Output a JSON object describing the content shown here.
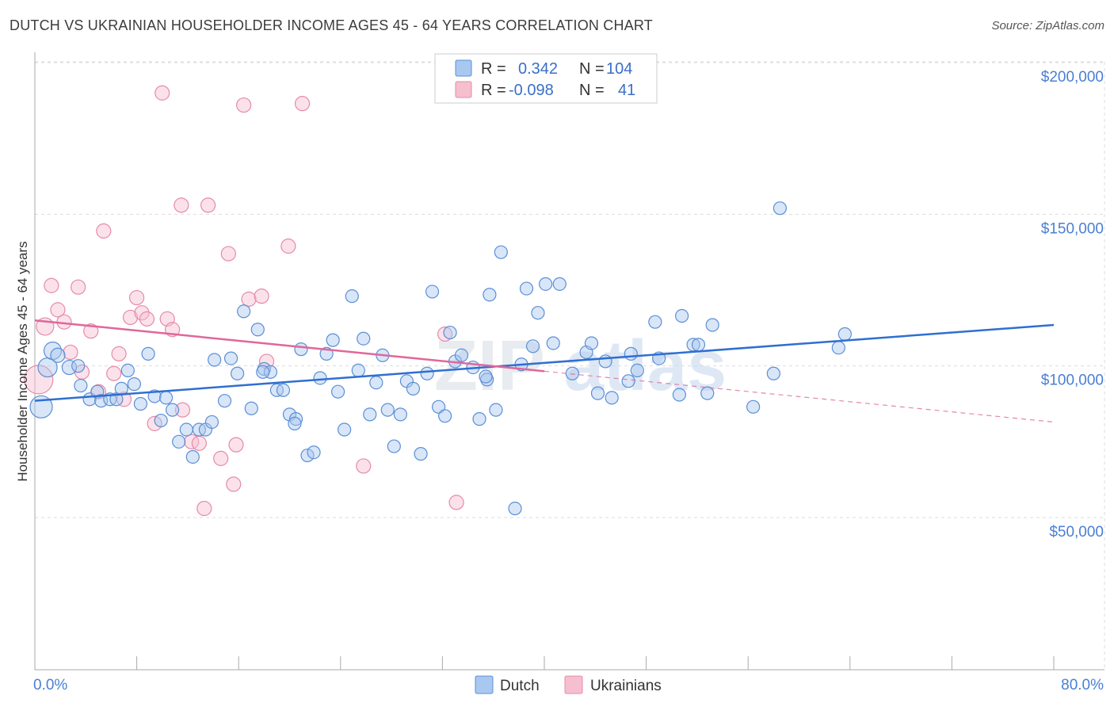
{
  "title": "DUTCH VS UKRAINIAN HOUSEHOLDER INCOME AGES 45 - 64 YEARS CORRELATION CHART",
  "source": "Source: ZipAtlas.com",
  "watermark": {
    "zip": "ZIP",
    "atlas": "atlas"
  },
  "colors": {
    "dutch_fill": "#a9c8f0",
    "dutch_stroke": "#5b8fd6",
    "dutch_line": "#2f6fd0",
    "ukr_fill": "#f6bfd0",
    "ukr_stroke": "#e68aa8",
    "ukr_line": "#e0679a",
    "tick_label": "#4a7fd4",
    "grid": "#dddddd"
  },
  "legend": {
    "rows": [
      {
        "r_label": "R =",
        "r_value": "0.342",
        "n_label": "N =",
        "n_value": "104"
      },
      {
        "r_label": "R =",
        "r_value": "-0.098",
        "n_label": "N =",
        "n_value": "41"
      }
    ]
  },
  "chart_data": {
    "type": "scatter",
    "ylabel": "Householder Income Ages 45 - 64 years",
    "xlabel": "",
    "xlim": [
      0,
      80
    ],
    "ylim": [
      10000,
      210000
    ],
    "x_tick_labels": [
      "0.0%",
      "80.0%"
    ],
    "y_ticks": [
      50000,
      100000,
      150000,
      200000
    ],
    "y_tick_labels": [
      "$50,000",
      "$100,000",
      "$150,000",
      "$200,000"
    ],
    "grid": true,
    "legend_placement": "bottom",
    "series": [
      {
        "name": "Dutch",
        "R": 0.342,
        "N": 104,
        "trend": {
          "x0": 0,
          "y0": 88500,
          "x1": 80,
          "y1": 113500,
          "solid_to": 80
        },
        "points": [
          [
            0.5,
            86500,
            14
          ],
          [
            1.0,
            99500,
            12
          ],
          [
            1.4,
            105000,
            11
          ],
          [
            1.8,
            103500,
            9
          ],
          [
            2.7,
            99500,
            9
          ],
          [
            3.4,
            100000,
            8
          ],
          [
            3.6,
            93500,
            8
          ],
          [
            4.3,
            89000,
            8
          ],
          [
            4.9,
            91500,
            8
          ],
          [
            5.2,
            88500,
            8
          ],
          [
            5.9,
            89000,
            8
          ],
          [
            6.4,
            89000,
            8
          ],
          [
            6.8,
            92500,
            8
          ],
          [
            7.3,
            98500,
            8
          ],
          [
            7.8,
            94000,
            8
          ],
          [
            8.3,
            87500,
            8
          ],
          [
            8.9,
            104000,
            8
          ],
          [
            9.4,
            90000,
            8
          ],
          [
            10.3,
            89500,
            8
          ],
          [
            9.9,
            82000,
            8
          ],
          [
            10.8,
            85500,
            8
          ],
          [
            11.3,
            75000,
            8
          ],
          [
            11.9,
            79000,
            8
          ],
          [
            12.4,
            70000,
            8
          ],
          [
            12.9,
            79000,
            8
          ],
          [
            13.4,
            79000,
            8
          ],
          [
            13.9,
            81500,
            8
          ],
          [
            14.1,
            102000,
            8
          ],
          [
            14.9,
            88500,
            8
          ],
          [
            15.4,
            102500,
            8
          ],
          [
            15.9,
            97500,
            8
          ],
          [
            16.4,
            118000,
            8
          ],
          [
            17.0,
            86000,
            8
          ],
          [
            17.5,
            112000,
            8
          ],
          [
            18.0,
            99000,
            8
          ],
          [
            18.5,
            98000,
            8
          ],
          [
            19.0,
            92000,
            8
          ],
          [
            19.5,
            92000,
            8
          ],
          [
            20.0,
            84000,
            8
          ],
          [
            20.5,
            82500,
            8
          ],
          [
            20.9,
            105500,
            8
          ],
          [
            21.4,
            70500,
            8
          ],
          [
            21.9,
            71500,
            8
          ],
          [
            22.4,
            96000,
            8
          ],
          [
            22.9,
            104000,
            8
          ],
          [
            23.4,
            108500,
            8
          ],
          [
            23.8,
            91500,
            8
          ],
          [
            24.3,
            79000,
            8
          ],
          [
            24.9,
            123000,
            8
          ],
          [
            25.4,
            98500,
            8
          ],
          [
            25.8,
            109000,
            8
          ],
          [
            26.3,
            84000,
            8
          ],
          [
            26.8,
            94500,
            8
          ],
          [
            27.3,
            103500,
            8
          ],
          [
            27.7,
            85500,
            8
          ],
          [
            28.2,
            73500,
            8
          ],
          [
            28.7,
            84000,
            8
          ],
          [
            29.2,
            95000,
            8
          ],
          [
            29.7,
            92500,
            8
          ],
          [
            30.3,
            71000,
            8
          ],
          [
            30.8,
            97500,
            8
          ],
          [
            31.2,
            124500,
            8
          ],
          [
            31.7,
            86500,
            8
          ],
          [
            32.2,
            83500,
            8
          ],
          [
            32.6,
            111000,
            8
          ],
          [
            33.0,
            101500,
            8
          ],
          [
            33.5,
            103500,
            8
          ],
          [
            34.4,
            99500,
            8
          ],
          [
            34.9,
            82500,
            8
          ],
          [
            35.5,
            95500,
            8
          ],
          [
            35.7,
            123500,
            8
          ],
          [
            36.2,
            85500,
            8
          ],
          [
            36.6,
            137500,
            8
          ],
          [
            37.7,
            53000,
            8
          ],
          [
            38.2,
            100500,
            8
          ],
          [
            38.6,
            125500,
            8
          ],
          [
            39.1,
            106500,
            8
          ],
          [
            39.5,
            117500,
            8
          ],
          [
            40.1,
            127000,
            8
          ],
          [
            40.7,
            107500,
            8
          ],
          [
            41.2,
            127000,
            8
          ],
          [
            42.2,
            97500,
            8
          ],
          [
            43.3,
            104500,
            8
          ],
          [
            43.7,
            107500,
            8
          ],
          [
            44.2,
            91000,
            8
          ],
          [
            44.8,
            101500,
            8
          ],
          [
            45.3,
            89500,
            8
          ],
          [
            46.6,
            95000,
            8
          ],
          [
            46.8,
            104000,
            8
          ],
          [
            47.3,
            98500,
            8
          ],
          [
            48.7,
            114500,
            8
          ],
          [
            49.0,
            102500,
            8
          ],
          [
            50.6,
            90500,
            8
          ],
          [
            50.8,
            116500,
            8
          ],
          [
            51.7,
            107000,
            8
          ],
          [
            52.1,
            107000,
            8
          ],
          [
            52.8,
            91000,
            8
          ],
          [
            53.2,
            113500,
            8
          ],
          [
            56.4,
            86500,
            8
          ],
          [
            58.0,
            97500,
            8
          ],
          [
            58.5,
            152000,
            8
          ],
          [
            63.1,
            106000,
            8
          ],
          [
            63.6,
            110500,
            8
          ],
          [
            20.4,
            81000,
            8
          ],
          [
            17.9,
            98000,
            8
          ],
          [
            35.4,
            96500,
            8
          ]
        ]
      },
      {
        "name": "Ukrainians",
        "R": -0.098,
        "N": 41,
        "trend": {
          "x0": 0,
          "y0": 115000,
          "x1": 80,
          "y1": 81500,
          "solid_to": 40
        },
        "points": [
          [
            0.3,
            95500,
            18
          ],
          [
            0.8,
            113000,
            11
          ],
          [
            1.3,
            126500,
            9
          ],
          [
            1.8,
            118500,
            9
          ],
          [
            2.3,
            114500,
            9
          ],
          [
            2.8,
            104500,
            9
          ],
          [
            3.4,
            126000,
            9
          ],
          [
            3.7,
            98000,
            9
          ],
          [
            4.4,
            111500,
            9
          ],
          [
            5.0,
            91500,
            9
          ],
          [
            5.4,
            144500,
            9
          ],
          [
            6.2,
            97500,
            9
          ],
          [
            6.6,
            104000,
            9
          ],
          [
            7.0,
            89000,
            9
          ],
          [
            7.5,
            116000,
            9
          ],
          [
            8.0,
            122500,
            9
          ],
          [
            8.4,
            117500,
            9
          ],
          [
            8.8,
            115500,
            9
          ],
          [
            9.4,
            81000,
            9
          ],
          [
            10.0,
            190000,
            9
          ],
          [
            10.4,
            115500,
            9
          ],
          [
            10.8,
            112000,
            9
          ],
          [
            11.6,
            85500,
            9
          ],
          [
            11.5,
            153000,
            9
          ],
          [
            12.3,
            75000,
            9
          ],
          [
            12.9,
            74500,
            9
          ],
          [
            13.3,
            53000,
            9
          ],
          [
            13.6,
            153000,
            9
          ],
          [
            14.6,
            69500,
            9
          ],
          [
            15.2,
            137000,
            9
          ],
          [
            15.6,
            61000,
            9
          ],
          [
            15.8,
            74000,
            9
          ],
          [
            16.4,
            186000,
            9
          ],
          [
            16.8,
            122000,
            9
          ],
          [
            17.8,
            123000,
            9
          ],
          [
            18.2,
            101500,
            9
          ],
          [
            19.9,
            139500,
            9
          ],
          [
            21.0,
            186500,
            9
          ],
          [
            25.8,
            67000,
            9
          ],
          [
            32.2,
            110500,
            9
          ],
          [
            33.1,
            55000,
            9
          ]
        ]
      }
    ]
  }
}
